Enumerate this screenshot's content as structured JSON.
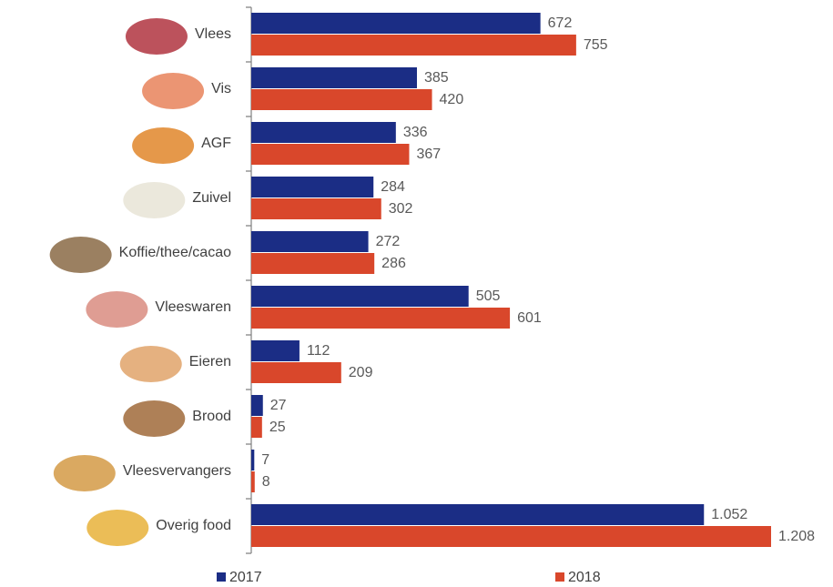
{
  "chart_data": {
    "type": "bar",
    "orientation": "horizontal",
    "categories": [
      "Vlees",
      "Vis",
      "AGF",
      "Zuivel",
      "Koffie/thee/cacao",
      "Vleeswaren",
      "Eieren",
      "Brood",
      "Vleesvervangers",
      "Overig food"
    ],
    "series": [
      {
        "name": "2017",
        "color": "#1b2d85",
        "values": [
          672,
          385,
          336,
          284,
          272,
          505,
          112,
          27,
          7,
          1052
        ],
        "value_labels": [
          "672",
          "385",
          "336",
          "284",
          "272",
          "505",
          "112",
          "27",
          "7",
          "1.052"
        ]
      },
      {
        "name": "2018",
        "color": "#d9472b",
        "values": [
          755,
          420,
          367,
          302,
          286,
          601,
          209,
          25,
          8,
          1208
        ],
        "value_labels": [
          "755",
          "420",
          "367",
          "302",
          "286",
          "601",
          "209",
          "25",
          "8",
          "1.208"
        ]
      }
    ],
    "legend": "bottom"
  }
}
